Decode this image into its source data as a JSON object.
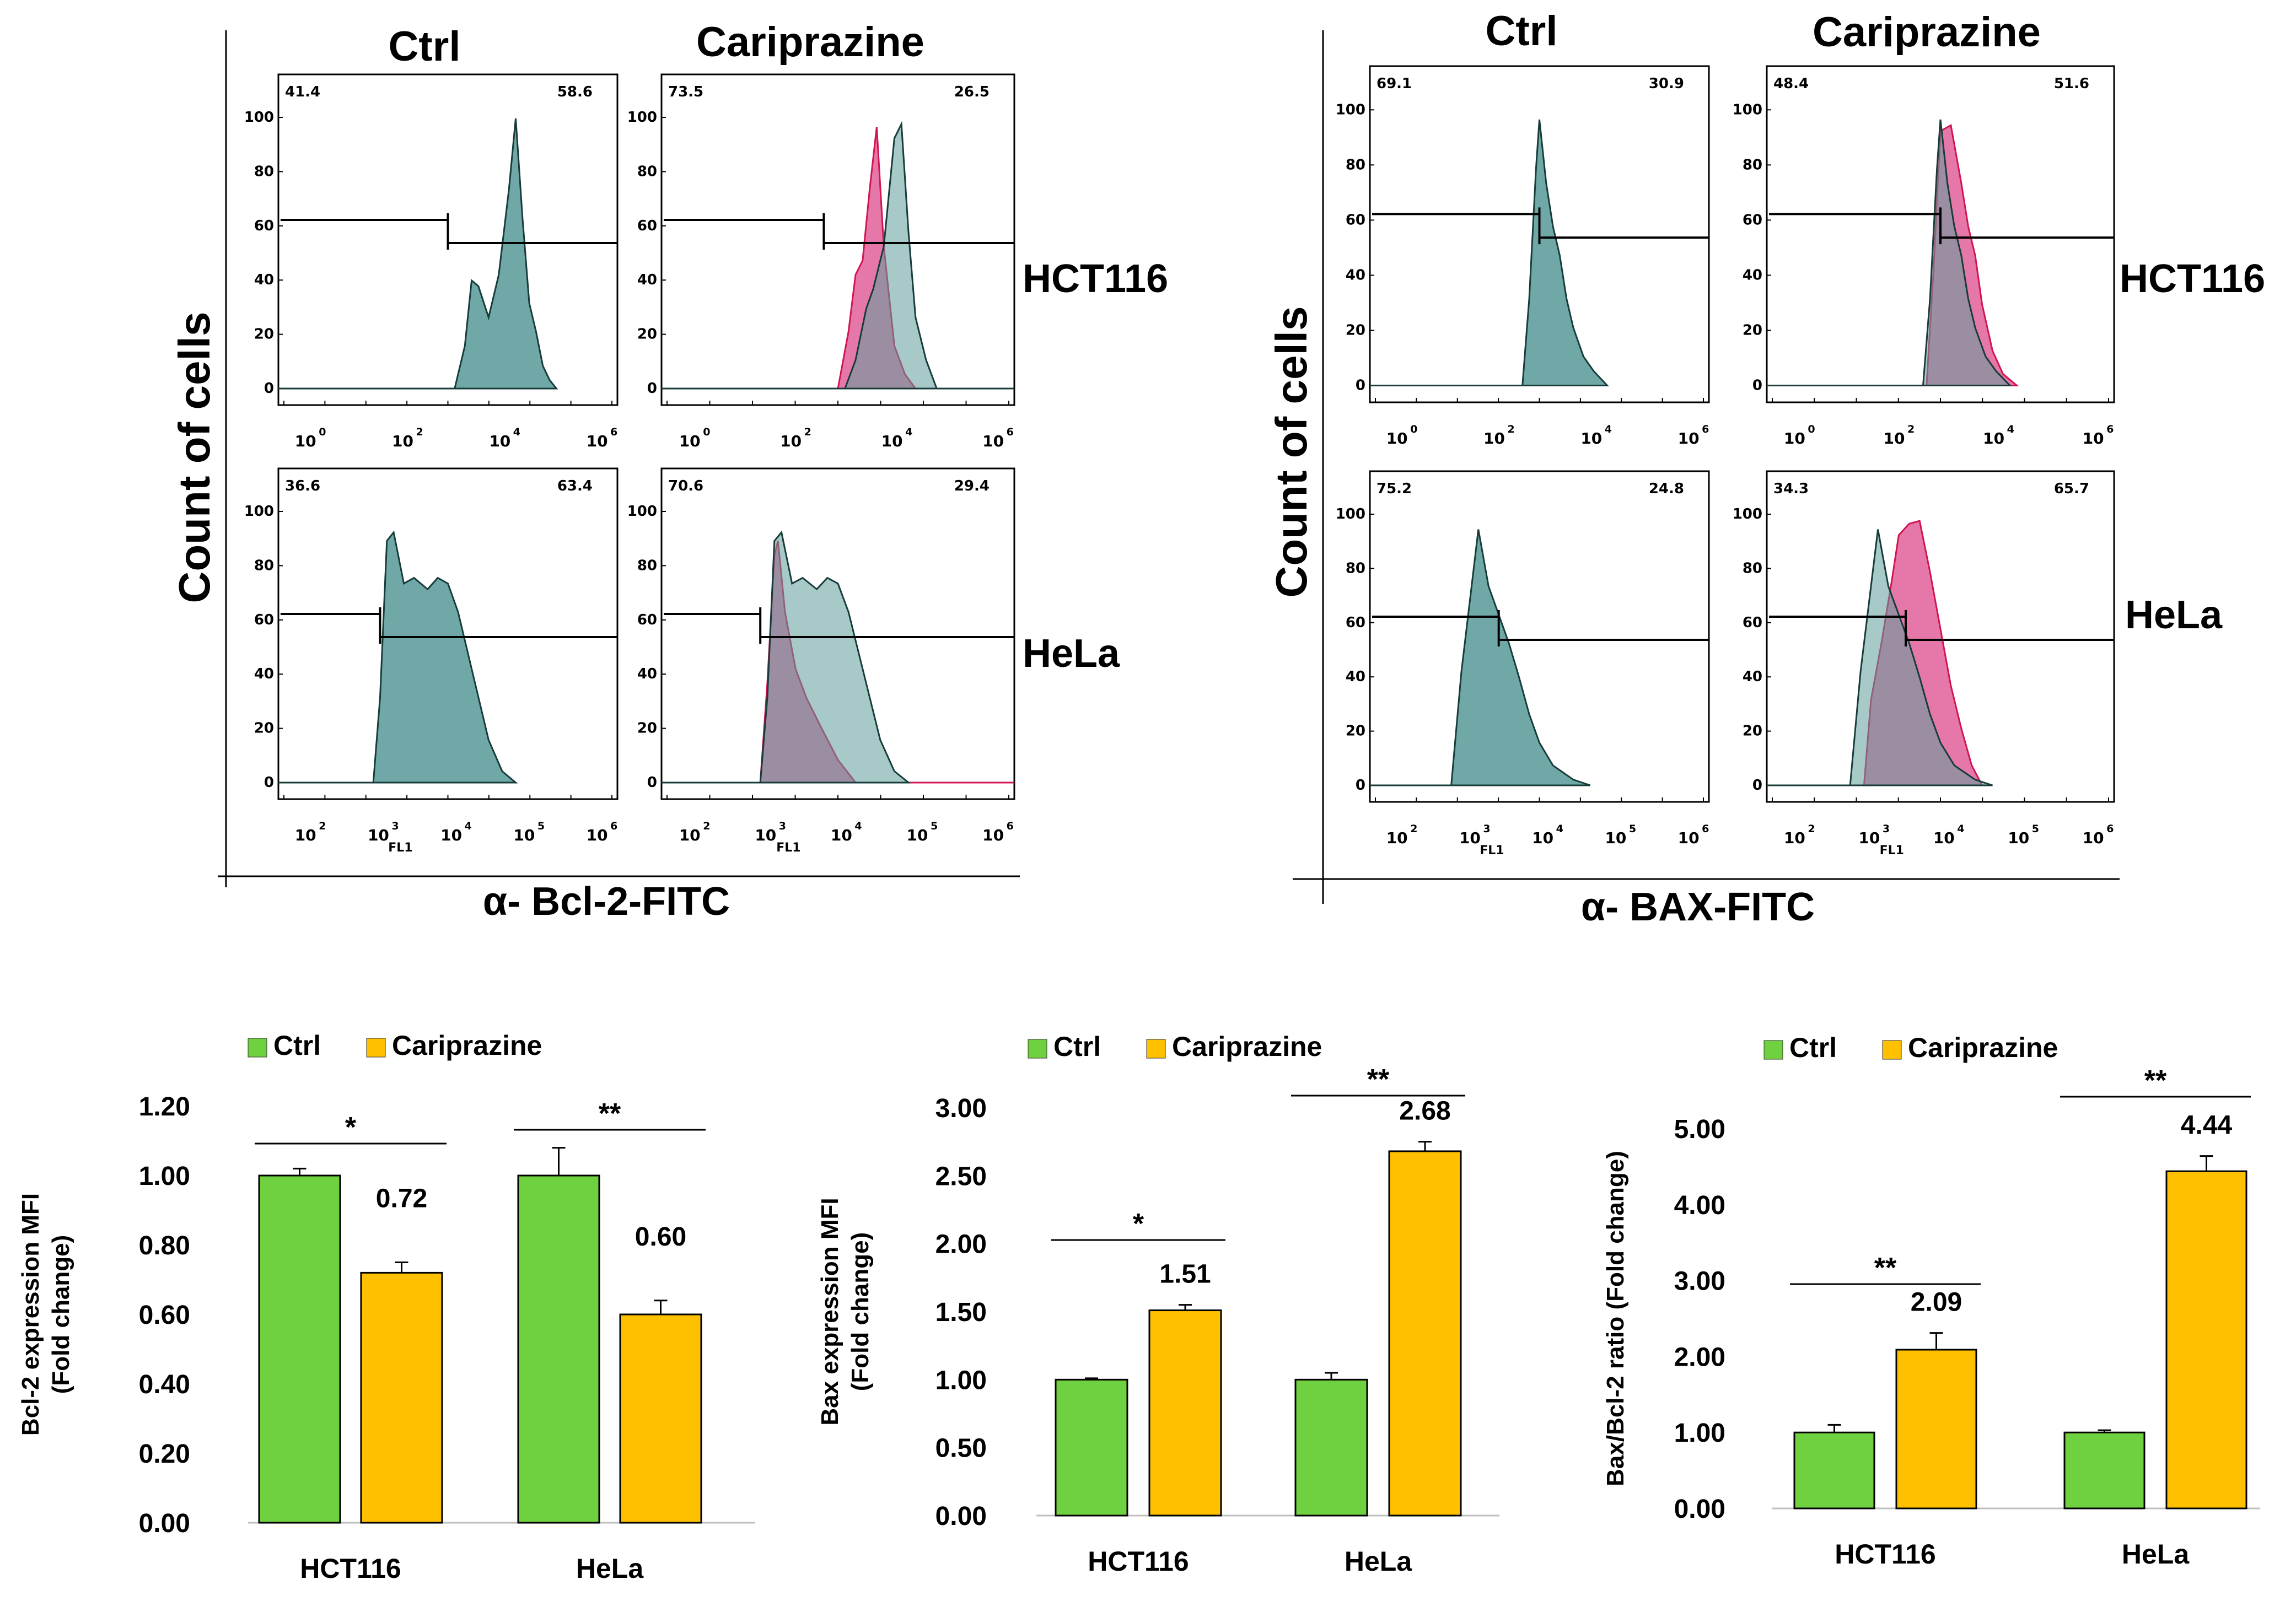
{
  "chart_data": [
    {
      "type": "histogram",
      "id": "bcl2_flow",
      "xlabel": "α- Bcl-2-FITC",
      "ylabel": "Count of cells",
      "column_titles": [
        "Ctrl",
        "Cariprazine"
      ],
      "row_labels": [
        "HCT116",
        "HeLa"
      ],
      "y_ticks": [
        "0",
        "20",
        "40",
        "60",
        "80",
        "100"
      ],
      "axis_label": "FL1",
      "colors": {
        "ctrl": "#5f9f9c",
        "treated": "#e0609a",
        "overlap": "#8a5c80",
        "ctrl_line": "#173c3a",
        "treated_line": "#d21450"
      },
      "panels": [
        {
          "row": "HCT116",
          "col": "Ctrl",
          "left_pct": "41.4",
          "right_pct": "58.6",
          "x_ticks": [
            "0",
            "2",
            "4",
            "6"
          ],
          "overlay": false
        },
        {
          "row": "HCT116",
          "col": "Cariprazine",
          "left_pct": "73.5",
          "right_pct": "26.5",
          "x_ticks": [
            "0",
            "2",
            "4",
            "6"
          ],
          "overlay": true
        },
        {
          "row": "HeLa",
          "col": "Ctrl",
          "left_pct": "36.6",
          "right_pct": "63.4",
          "x_ticks": [
            "2",
            "3",
            "4",
            "5",
            "6"
          ],
          "overlay": false
        },
        {
          "row": "HeLa",
          "col": "Cariprazine",
          "left_pct": "70.6",
          "right_pct": "29.4",
          "x_ticks": [
            "2",
            "3",
            "4",
            "5",
            "6"
          ],
          "overlay": true
        }
      ]
    },
    {
      "type": "histogram",
      "id": "bax_flow",
      "xlabel": "α- BAX-FITC",
      "ylabel": "Count of cells",
      "column_titles": [
        "Ctrl",
        "Cariprazine"
      ],
      "row_labels": [
        "HCT116",
        "HeLa"
      ],
      "y_ticks": [
        "0",
        "20",
        "40",
        "60",
        "80",
        "100"
      ],
      "axis_label": "FL1",
      "panels": [
        {
          "row": "HCT116",
          "col": "Ctrl",
          "left_pct": "69.1",
          "right_pct": "30.9",
          "x_ticks": [
            "0",
            "2",
            "4",
            "6"
          ],
          "overlay": false
        },
        {
          "row": "HCT116",
          "col": "Cariprazine",
          "left_pct": "48.4",
          "right_pct": "51.6",
          "x_ticks": [
            "0",
            "2",
            "4",
            "6"
          ],
          "overlay": true
        },
        {
          "row": "HeLa",
          "col": "Ctrl",
          "left_pct": "75.2",
          "right_pct": "24.8",
          "x_ticks": [
            "2",
            "3",
            "4",
            "5",
            "6"
          ],
          "overlay": false
        },
        {
          "row": "HeLa",
          "col": "Cariprazine",
          "left_pct": "34.3",
          "right_pct": "65.7",
          "x_ticks": [
            "2",
            "3",
            "4",
            "5",
            "6"
          ],
          "overlay": true
        }
      ]
    },
    {
      "type": "bar",
      "id": "bcl2_bar",
      "categories": [
        "HCT116",
        "HeLa"
      ],
      "series": [
        {
          "name": "Ctrl",
          "color": "#6fd13f",
          "values": [
            1.0,
            1.0
          ],
          "errors": [
            0.02,
            0.08
          ]
        },
        {
          "name": "Cariprazine",
          "color": "#ffc000",
          "values": [
            0.72,
            0.6
          ],
          "errors": [
            0.03,
            0.04
          ]
        }
      ],
      "value_labels": [
        "0.72",
        "0.60"
      ],
      "significance": [
        "*",
        "**"
      ],
      "ylabel": "Bcl-2 expression MFI",
      "ylabel2": "(Fold change)",
      "ylim": [
        0,
        1.2
      ],
      "yticks": [
        "0.00",
        "0.20",
        "0.40",
        "0.60",
        "0.80",
        "1.00",
        "1.20"
      ]
    },
    {
      "type": "bar",
      "id": "bax_bar",
      "categories": [
        "HCT116",
        "HeLa"
      ],
      "series": [
        {
          "name": "Ctrl",
          "color": "#6fd13f",
          "values": [
            1.0,
            1.0
          ],
          "errors": [
            0.01,
            0.05
          ]
        },
        {
          "name": "Cariprazine",
          "color": "#ffc000",
          "values": [
            1.51,
            2.68
          ],
          "errors": [
            0.04,
            0.07
          ]
        }
      ],
      "value_labels": [
        "1.51",
        "2.68"
      ],
      "significance": [
        "*",
        "**"
      ],
      "ylabel": "Bax expression MFI",
      "ylabel2": "(Fold change)",
      "ylim": [
        0,
        3.0
      ],
      "yticks": [
        "0.00",
        "0.50",
        "1.00",
        "1.50",
        "2.00",
        "2.50",
        "3.00"
      ]
    },
    {
      "type": "bar",
      "id": "ratio_bar",
      "categories": [
        "HCT116",
        "HeLa"
      ],
      "series": [
        {
          "name": "Ctrl",
          "color": "#6fd13f",
          "values": [
            1.0,
            1.0
          ],
          "errors": [
            0.1,
            0.03
          ]
        },
        {
          "name": "Cariprazine",
          "color": "#ffc000",
          "values": [
            2.09,
            4.44
          ],
          "errors": [
            0.22,
            0.2
          ]
        }
      ],
      "value_labels": [
        "2.09",
        "4.44"
      ],
      "significance": [
        "**",
        "**"
      ],
      "ylabel": "Bax/Bcl-2 ratio (Fold change)",
      "ylabel2": "",
      "ylim": [
        0,
        5.0
      ],
      "yticks": [
        "0.00",
        "1.00",
        "2.00",
        "3.00",
        "4.00",
        "5.00"
      ]
    }
  ]
}
